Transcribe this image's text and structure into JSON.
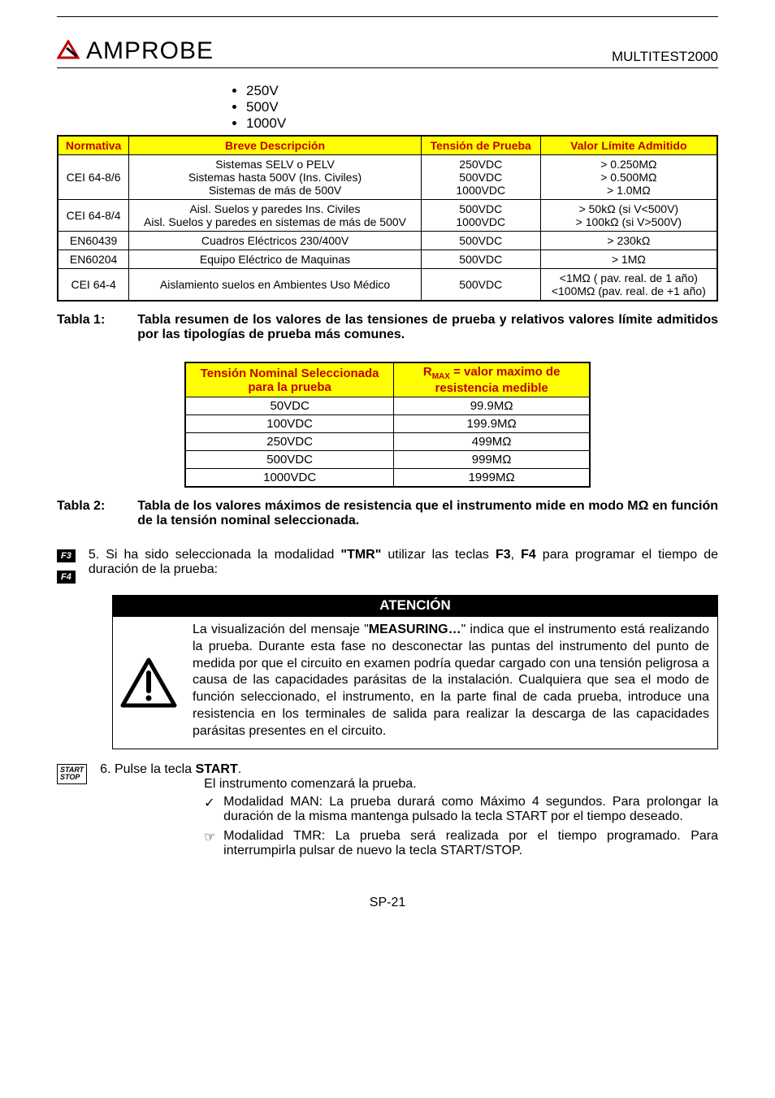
{
  "header": {
    "brand": "AMPROBE",
    "model": "MULTITEST2000",
    "logo_color": "#c00000"
  },
  "voltage_bullets": [
    "250V",
    "500V",
    "1000V"
  ],
  "table1": {
    "headers": [
      "Normativa",
      "Breve Descripción",
      "Tensión de Prueba",
      "Valor Límite Admitido"
    ],
    "rows": [
      {
        "norm": "CEI 64-8/6",
        "desc": "Sistemas SELV o PELV\nSistemas hasta 500V (Ins. Civiles)\nSistemas de más de 500V",
        "tension": "250VDC\n500VDC\n1000VDC",
        "valor": "> 0.250MΩ\n> 0.500MΩ\n> 1.0MΩ"
      },
      {
        "norm": "CEI 64-8/4",
        "desc": "Aisl. Suelos y paredes Ins. Civiles\nAisl. Suelos y paredes en sistemas de más de 500V",
        "tension": "500VDC\n1000VDC",
        "valor": "> 50kΩ (si V<500V)\n> 100kΩ (si V>500V)"
      },
      {
        "norm": "EN60439",
        "desc": "Cuadros Eléctricos 230/400V",
        "tension": "500VDC",
        "valor": "> 230kΩ"
      },
      {
        "norm": "EN60204",
        "desc": "Equipo Eléctrico de Maquinas",
        "tension": "500VDC",
        "valor": "> 1MΩ"
      },
      {
        "norm": "CEI 64-4",
        "desc": "Aislamiento suelos en Ambientes Uso Médico",
        "tension": "500VDC",
        "valor": "<1MΩ ( pav. real. de 1 año)\n<100MΩ (pav. real. de +1 año)"
      }
    ],
    "caption_label": "Tabla 1:",
    "caption_text": "Tabla resumen de los valores de las tensiones de prueba y relativos valores límite admitidos por las tipologías de prueba más comunes."
  },
  "table2": {
    "header_a_red": "Tensión Nominal Seleccionada para la prueba",
    "header_b_prefix": "R",
    "header_b_sub": "MAX",
    "header_b_rest": " = valor maximo de resistencia medible",
    "rows": [
      {
        "a": "50VDC",
        "b": "99.9MΩ"
      },
      {
        "a": "100VDC",
        "b": "199.9MΩ"
      },
      {
        "a": "250VDC",
        "b": "499MΩ"
      },
      {
        "a": "500VDC",
        "b": "999MΩ"
      },
      {
        "a": "1000VDC",
        "b": "1999MΩ"
      }
    ],
    "caption_label": "Tabla 2:",
    "caption_text_a": "Tabla de los valores máximos de resistencia que el instrumento mide en modo M",
    "caption_text_b": "Ω",
    "caption_text_c": " en función de la tensión nominal seleccionada."
  },
  "step5": {
    "keys": [
      "F3",
      "F4"
    ],
    "text_a": "5. Si ha sido seleccionada la modalidad ",
    "text_bold1": "\"TMR\"",
    "text_b": " utilizar las teclas ",
    "text_bold2": "F3",
    "text_c": ", ",
    "text_bold3": "F4",
    "text_d": " para programar el tiempo de duración de la prueba:"
  },
  "atencion": {
    "title": "ATENCIÓN",
    "text_a": "La visualización del mensaje \"",
    "text_bold": "MEASURING…",
    "text_b": "\" indica que el instrumento está realizando la prueba. Durante esta fase no desconectar las puntas del instrumento del punto de medida por que el circuito en examen podría quedar cargado con una tensión peligrosa a causa de las capacidades parásitas de la instalación. Cualquiera que sea el modo de función seleccionado, el instrumento, en la parte final de cada prueba, introduce una resistencia en los terminales de salida para realizar la descarga de las capacidades parásitas presentes en el circuito."
  },
  "step6": {
    "key_line1": "START",
    "key_line2": "STOP",
    "line_a": "6. Pulse la tecla ",
    "line_bold": "START",
    "line_b": ".",
    "sub": "El  instrumento comenzará la prueba.",
    "items": [
      {
        "mark": "✓",
        "text": "Modalidad MAN: La prueba durará como Máximo 4 segundos. Para prolongar la duración de la misma mantenga pulsado la tecla START por el tiempo deseado."
      },
      {
        "mark": "☞",
        "text": "Modalidad TMR: La prueba será realizada por el tiempo programado. Para interrumpirla pulsar de nuevo la tecla START/STOP."
      }
    ]
  },
  "pager": "SP-21"
}
